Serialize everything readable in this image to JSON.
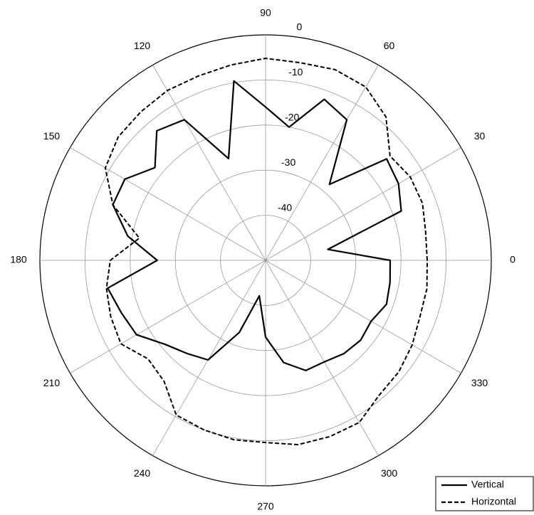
{
  "chart_data": {
    "type": "polar",
    "theta": [
      0,
      10,
      20,
      30,
      40,
      50,
      60,
      70,
      80,
      90,
      100,
      110,
      120,
      130,
      140,
      150,
      160,
      170,
      180,
      190,
      200,
      210,
      220,
      230,
      240,
      250,
      260,
      270,
      280,
      290,
      300,
      310,
      320,
      330,
      340,
      350
    ],
    "series": [
      {
        "name": "Vertical",
        "color": "#000000",
        "line_style": "solid",
        "values": [
          -22.4,
          -36,
          -18,
          -16,
          -15,
          -28,
          -14,
          -12,
          -20,
          -16,
          -9.6,
          -26,
          -14,
          -12.5,
          -18,
          -14,
          -14,
          -19,
          -26,
          -14.5,
          -16,
          -17,
          -21,
          -23,
          -24.5,
          -33,
          -42,
          -33,
          -27,
          -24,
          -24,
          -23,
          -22.5,
          -23,
          -21.5,
          -22
        ]
      },
      {
        "name": "Horizontal",
        "color": "#000000",
        "line_style": "dashed",
        "values": [
          -14.2,
          -14,
          -13,
          -13,
          -14,
          -8.5,
          -5.6,
          -5,
          -5.5,
          -5.2,
          -6,
          -6.5,
          -6.5,
          -7,
          -7.4,
          -9,
          -14,
          -21.6,
          -15.6,
          -14.2,
          -13.5,
          -13,
          -16,
          -15,
          -10.4,
          -10,
          -9.6,
          -9.6,
          -8.5,
          -8.4,
          -8.5,
          -10.9,
          -11.5,
          -12.5,
          -13.6,
          -13.7
        ]
      }
    ],
    "rlim": [
      -50,
      0
    ],
    "rticks": [
      0,
      -10,
      -20,
      -30,
      -40
    ],
    "thetaticks": [
      0,
      30,
      60,
      90,
      120,
      150,
      180,
      210,
      240,
      270,
      300,
      330
    ],
    "grid": true,
    "legend": "bottom-right"
  }
}
